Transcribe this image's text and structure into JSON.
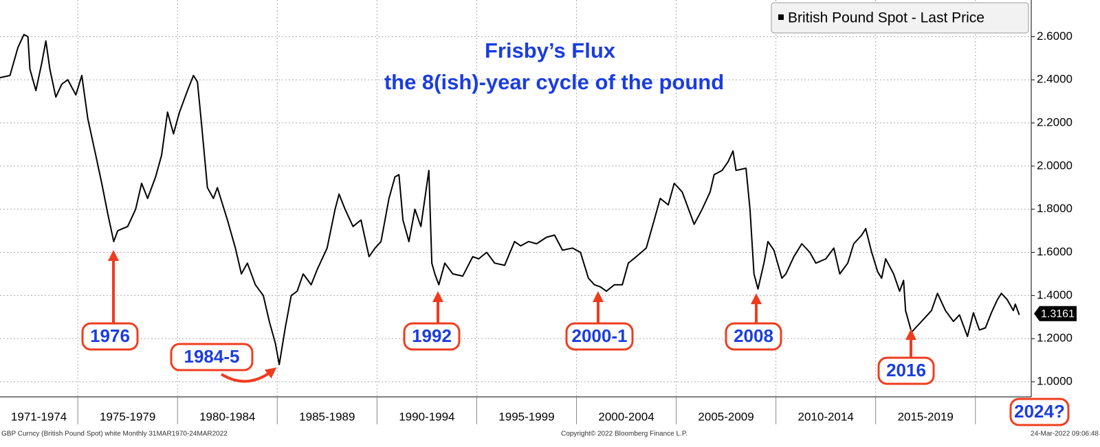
{
  "chart_data": {
    "type": "line",
    "title": "Frisby’s Flux",
    "subtitle": "the 8(ish)-year cycle of the pound",
    "legend": "British Pound Spot - Last Price",
    "legend_corner": "top-right",
    "grid": true,
    "period_labels": [
      "1971-1974",
      "1975-1979",
      "1980-1984",
      "1985-1989",
      "1990-1994",
      "1995-1999",
      "2000-2004",
      "2005-2009",
      "2010-2014",
      "2015-2019"
    ],
    "xlim": [
      1971.1,
      2022.8
    ],
    "xticks": [
      1975,
      1980,
      1985,
      1990,
      1995,
      2000,
      2005,
      2010,
      2015,
      2020
    ],
    "ylim": [
      0.93,
      2.77
    ],
    "yticks": [
      {
        "value": 1.0,
        "label": "1.0000"
      },
      {
        "value": 1.2,
        "label": "1.2000"
      },
      {
        "value": 1.4,
        "label": "1.4000"
      },
      {
        "value": 1.6,
        "label": "1.6000"
      },
      {
        "value": 1.8,
        "label": "1.8000"
      },
      {
        "value": 2.0,
        "label": "2.0000"
      },
      {
        "value": 2.2,
        "label": "2.2000"
      },
      {
        "value": 2.4,
        "label": "2.4000"
      },
      {
        "value": 2.6,
        "label": "2.6000"
      }
    ],
    "last_price": {
      "value": 1.3161,
      "label": "1.3161"
    },
    "series": [
      {
        "name": "British Pound Spot - Last Price",
        "color": "#000000",
        "x": [
          1971.1,
          1971.6,
          1972.0,
          1972.3,
          1972.5,
          1972.6,
          1972.9,
          1973.2,
          1973.4,
          1973.6,
          1973.9,
          1974.2,
          1974.5,
          1974.9,
          1975.2,
          1975.5,
          1975.9,
          1976.2,
          1976.5,
          1976.8,
          1977.0,
          1977.5,
          1977.9,
          1978.2,
          1978.5,
          1978.9,
          1979.2,
          1979.5,
          1979.8,
          1980.1,
          1980.5,
          1980.8,
          1981.0,
          1981.2,
          1981.5,
          1981.8,
          1982.0,
          1982.5,
          1982.9,
          1983.2,
          1983.5,
          1983.9,
          1984.3,
          1984.6,
          1984.9,
          1985.1,
          1985.4,
          1985.7,
          1986.0,
          1986.3,
          1986.7,
          1987.0,
          1987.5,
          1987.9,
          1988.1,
          1988.4,
          1988.8,
          1989.2,
          1989.6,
          1989.9,
          1990.2,
          1990.6,
          1990.9,
          1991.1,
          1991.3,
          1991.6,
          1991.9,
          1992.2,
          1992.6,
          1992.75,
          1992.9,
          1993.1,
          1993.4,
          1993.8,
          1994.3,
          1994.8,
          1995.1,
          1995.5,
          1995.9,
          1996.4,
          1996.9,
          1997.2,
          1997.6,
          1998.0,
          1998.5,
          1998.9,
          1999.3,
          1999.8,
          2000.2,
          2000.6,
          2000.9,
          2001.2,
          2001.5,
          2001.9,
          2002.3,
          2002.6,
          2003.0,
          2003.5,
          2003.9,
          2004.2,
          2004.6,
          2004.9,
          2005.3,
          2005.7,
          2005.9,
          2006.3,
          2006.7,
          2006.9,
          2007.3,
          2007.6,
          2007.85,
          2008.0,
          2008.5,
          2008.7,
          2008.9,
          2009.1,
          2009.4,
          2009.6,
          2009.9,
          2010.3,
          2010.5,
          2010.9,
          2011.3,
          2011.7,
          2012.0,
          2012.5,
          2012.9,
          2013.2,
          2013.6,
          2013.9,
          2014.3,
          2014.5,
          2014.8,
          2015.1,
          2015.3,
          2015.5,
          2015.9,
          2016.2,
          2016.4,
          2016.5,
          2016.8,
          2017.0,
          2017.4,
          2017.8,
          2018.1,
          2018.5,
          2018.9,
          2019.2,
          2019.6,
          2019.9,
          2020.2,
          2020.5,
          2020.8,
          2021.1,
          2021.3,
          2021.6,
          2021.9,
          2022.0,
          2022.2
        ],
        "values": [
          2.41,
          2.42,
          2.55,
          2.61,
          2.6,
          2.45,
          2.35,
          2.48,
          2.58,
          2.45,
          2.32,
          2.38,
          2.4,
          2.33,
          2.42,
          2.22,
          2.05,
          1.92,
          1.78,
          1.65,
          1.7,
          1.72,
          1.8,
          1.92,
          1.85,
          1.95,
          2.05,
          2.25,
          2.15,
          2.25,
          2.35,
          2.42,
          2.39,
          2.2,
          1.9,
          1.85,
          1.9,
          1.75,
          1.62,
          1.5,
          1.55,
          1.45,
          1.4,
          1.28,
          1.18,
          1.08,
          1.25,
          1.4,
          1.42,
          1.5,
          1.45,
          1.52,
          1.62,
          1.8,
          1.87,
          1.8,
          1.72,
          1.75,
          1.58,
          1.62,
          1.65,
          1.85,
          1.95,
          1.96,
          1.75,
          1.65,
          1.8,
          1.72,
          1.98,
          1.55,
          1.5,
          1.45,
          1.55,
          1.5,
          1.49,
          1.58,
          1.57,
          1.6,
          1.55,
          1.54,
          1.65,
          1.63,
          1.65,
          1.64,
          1.67,
          1.68,
          1.61,
          1.62,
          1.6,
          1.48,
          1.45,
          1.44,
          1.42,
          1.45,
          1.45,
          1.55,
          1.58,
          1.62,
          1.75,
          1.85,
          1.82,
          1.92,
          1.88,
          1.78,
          1.73,
          1.8,
          1.88,
          1.96,
          1.98,
          2.02,
          2.07,
          1.98,
          1.99,
          1.8,
          1.5,
          1.43,
          1.55,
          1.65,
          1.61,
          1.48,
          1.5,
          1.58,
          1.64,
          1.6,
          1.55,
          1.57,
          1.62,
          1.5,
          1.55,
          1.64,
          1.68,
          1.71,
          1.6,
          1.51,
          1.48,
          1.57,
          1.5,
          1.42,
          1.47,
          1.33,
          1.23,
          1.25,
          1.29,
          1.33,
          1.41,
          1.33,
          1.28,
          1.31,
          1.21,
          1.32,
          1.24,
          1.25,
          1.32,
          1.38,
          1.41,
          1.38,
          1.33,
          1.36,
          1.31
        ]
      }
    ],
    "annotations": [
      "1976",
      "1984-5",
      "1992",
      "2000-1",
      "2008",
      "2016",
      "2024?"
    ],
    "footer": {
      "left": "GBP Curncy (British Pound Spot) white  Monthly 31MAR1970-24MAR2022",
      "center": "Copyright© 2022 Bloomberg Finance L.P.",
      "right": "24-Mar-2022 09:06:48"
    }
  }
}
